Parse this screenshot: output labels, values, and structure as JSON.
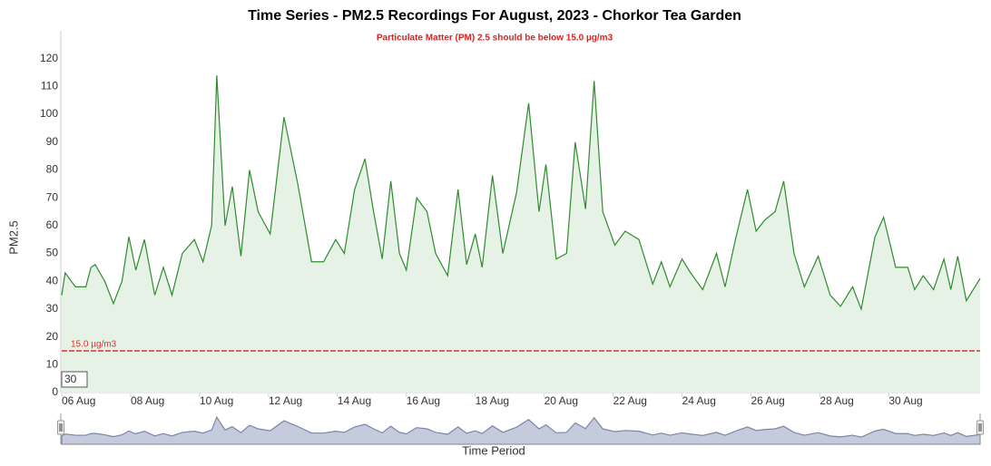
{
  "chart_data": {
    "type": "area",
    "title": "Time Series - PM2.5 Recordings For August, 2023 - Chorkor Tea Garden",
    "subtitle": "Particulate Matter (PM) 2.5 should be below 15.0 µg/m3",
    "y_axis_label": "PM2.5",
    "x_axis_label": "Time Period",
    "range_label": "30",
    "color": "#2e8b2e",
    "fill_color": "#e6f2e6",
    "navigator_color": "#7a86a8",
    "threshold": {
      "value": 15,
      "label": "15.0 µg/m3",
      "color": "#e03030"
    },
    "xlim": [
      6,
      32.65
    ],
    "ylim": [
      0,
      130
    ],
    "yticks": [
      0,
      10,
      20,
      30,
      40,
      50,
      60,
      70,
      80,
      90,
      100,
      110,
      120
    ],
    "xticks": [
      {
        "value": 6,
        "label": "06 Aug"
      },
      {
        "value": 8,
        "label": "08 Aug"
      },
      {
        "value": 10,
        "label": "10 Aug"
      },
      {
        "value": 12,
        "label": "12 Aug"
      },
      {
        "value": 14,
        "label": "14 Aug"
      },
      {
        "value": 16,
        "label": "16 Aug"
      },
      {
        "value": 18,
        "label": "18 Aug"
      },
      {
        "value": 20,
        "label": "20 Aug"
      },
      {
        "value": 22,
        "label": "22 Aug"
      },
      {
        "value": 24,
        "label": "24 Aug"
      },
      {
        "value": 26,
        "label": "26 Aug"
      },
      {
        "value": 28,
        "label": "28 Aug"
      },
      {
        "value": 30,
        "label": "30 Aug"
      }
    ],
    "x": [
      6.0,
      6.1,
      6.4,
      6.7,
      6.85,
      6.97,
      7.25,
      7.5,
      7.75,
      7.95,
      8.15,
      8.4,
      8.7,
      8.95,
      9.2,
      9.5,
      9.85,
      10.1,
      10.35,
      10.5,
      10.74,
      10.95,
      11.2,
      11.45,
      11.7,
      12.05,
      12.45,
      12.85,
      13.25,
      13.6,
      13.95,
      14.2,
      14.5,
      14.8,
      15.05,
      15.3,
      15.55,
      15.8,
      16.0,
      16.3,
      16.6,
      16.85,
      17.2,
      17.5,
      17.75,
      18.0,
      18.2,
      18.5,
      18.8,
      19.2,
      19.55,
      19.85,
      20.05,
      20.35,
      20.65,
      20.9,
      21.2,
      21.45,
      21.7,
      22.05,
      22.35,
      22.75,
      23.15,
      23.4,
      23.65,
      24.0,
      24.25,
      24.6,
      25.0,
      25.25,
      25.55,
      25.9,
      26.15,
      26.4,
      26.7,
      26.95,
      27.25,
      27.55,
      27.95,
      28.3,
      28.6,
      28.95,
      29.2,
      29.6,
      29.85,
      30.2,
      30.55,
      30.75,
      31.0,
      31.3,
      31.6,
      31.8,
      32.0,
      32.25,
      32.65
    ],
    "values": [
      35,
      43,
      38,
      38,
      45,
      46,
      40,
      32,
      40,
      56,
      44,
      55,
      35,
      45,
      35,
      50,
      55,
      47,
      60,
      114,
      60,
      74,
      49,
      80,
      65,
      57,
      99,
      75,
      47,
      47,
      55,
      50,
      73,
      84,
      65,
      48,
      76,
      50,
      44,
      70,
      65,
      50,
      42,
      73,
      46,
      57,
      45,
      78,
      50,
      72,
      104,
      65,
      82,
      48,
      50,
      90,
      66,
      112,
      65,
      53,
      58,
      55,
      39,
      47,
      38,
      48,
      43,
      37,
      50,
      38,
      55,
      73,
      58,
      62,
      65,
      76,
      50,
      38,
      49,
      35,
      31,
      38,
      30,
      56,
      63,
      45,
      45,
      37,
      42,
      37,
      48,
      37,
      49,
      33,
      41
    ]
  }
}
